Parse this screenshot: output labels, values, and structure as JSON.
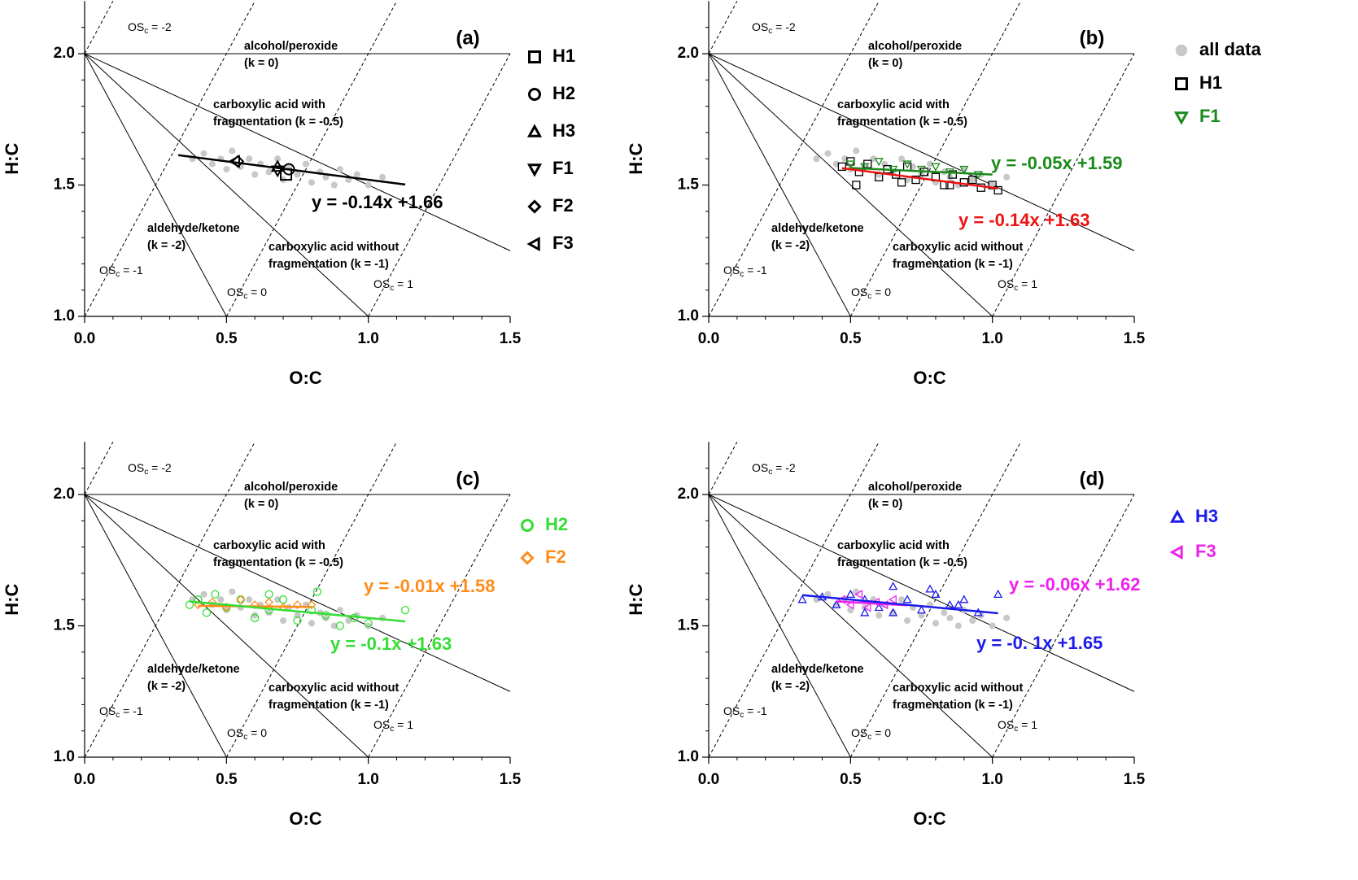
{
  "chart_data": [
    {
      "type": "scatter",
      "panel_label": "(a)",
      "xlabel": "O:C",
      "ylabel": "H:C",
      "xlim": [
        0,
        1.5
      ],
      "ylim": [
        1.0,
        2.2
      ],
      "xticks": [
        {
          "value": 0,
          "label": "0.0"
        },
        0.5,
        {
          "value": 1,
          "label": "1.0"
        },
        1.5
      ],
      "yticks": [
        {
          "value": 1,
          "label": "1.0"
        },
        1.5,
        {
          "value": 2,
          "label": "2.0"
        }
      ],
      "xminorticks": [
        0.1,
        0.2,
        0.3,
        0.4,
        0.6,
        0.7,
        0.8,
        0.9,
        1.1,
        1.2,
        1.3,
        1.4
      ],
      "yminorticks": [
        1.1,
        1.2,
        1.3,
        1.4,
        1.6,
        1.7,
        1.8,
        1.9,
        2.1
      ],
      "slope_origin": [
        0,
        2
      ],
      "slope_lines": [
        {
          "k": 0,
          "labels": [
            "alcohol/peroxide",
            "(k = 0)"
          ]
        },
        {
          "k": -0.5,
          "labels": [
            "carboxylic acid with",
            "fragmentation (k = -0.5)"
          ]
        },
        {
          "k": -1,
          "labels": [
            "carboxylic acid without",
            "fragmentation (k = -1)"
          ]
        },
        {
          "k": -2,
          "labels": [
            "aldehyde/ketone",
            "(k = -2)"
          ]
        }
      ],
      "os_lines": [
        {
          "value": -2,
          "main": "OS",
          "sub": "c",
          "rest": " = -2"
        },
        {
          "value": -1,
          "main": "OS",
          "sub": "c",
          "rest": " = -1"
        },
        {
          "value": 0,
          "main": "OS",
          "sub": "c",
          "rest": " = 0"
        },
        {
          "value": 1,
          "main": "OS",
          "sub": "c",
          "rest": " = 1"
        }
      ],
      "series": [
        {
          "marker": "dot",
          "color": "#c8c8c8",
          "x": [
            0.38,
            0.42,
            0.45,
            0.48,
            0.5,
            0.52,
            0.55,
            0.58,
            0.6,
            0.62,
            0.65,
            0.68,
            0.7,
            0.72,
            0.75,
            0.78,
            0.8,
            0.83,
            0.85,
            0.88,
            0.9,
            0.93,
            0.96,
            1.0,
            1.05
          ],
          "y": [
            1.6,
            1.62,
            1.58,
            1.6,
            1.56,
            1.63,
            1.57,
            1.6,
            1.54,
            1.58,
            1.55,
            1.6,
            1.52,
            1.57,
            1.54,
            1.58,
            1.51,
            1.55,
            1.53,
            1.5,
            1.56,
            1.52,
            1.54,
            1.5,
            1.53
          ]
        },
        {
          "name": "H1",
          "marker": "square",
          "color": "#000000",
          "x": [
            0.71
          ],
          "y": [
            1.54
          ]
        },
        {
          "name": "H2",
          "marker": "circle",
          "color": "#000000",
          "x": [
            0.72
          ],
          "y": [
            1.56
          ]
        },
        {
          "name": "H3",
          "marker": "tri-up",
          "color": "#000000",
          "x": [
            0.68
          ],
          "y": [
            1.57
          ]
        },
        {
          "name": "F1",
          "marker": "tri-down",
          "color": "#000000",
          "x": [
            0.68
          ],
          "y": [
            1.555
          ]
        },
        {
          "name": "F2",
          "marker": "diamond",
          "color": "#000000",
          "x": [
            0.54
          ],
          "y": [
            1.59
          ]
        },
        {
          "name": "F3",
          "marker": "tri-left",
          "color": "#000000",
          "x": [
            0.53
          ],
          "y": [
            1.59
          ]
        }
      ],
      "fits": [
        {
          "label": "y = -0.14x +1.66",
          "color": "#000000",
          "slope": -0.14,
          "intercept": 1.66,
          "xrange": [
            0.33,
            1.13
          ]
        }
      ]
    },
    {
      "type": "scatter",
      "panel_label": "(b)",
      "xlabel": "O:C",
      "ylabel": "H:C",
      "xlim": [
        0,
        1.5
      ],
      "ylim": [
        1.0,
        2.2
      ],
      "xticks": [
        {
          "value": 0,
          "label": "0.0"
        },
        0.5,
        {
          "value": 1,
          "label": "1.0"
        },
        1.5
      ],
      "yticks": [
        {
          "value": 1,
          "label": "1.0"
        },
        1.5,
        {
          "value": 2,
          "label": "2.0"
        }
      ],
      "xminorticks": [
        0.1,
        0.2,
        0.3,
        0.4,
        0.6,
        0.7,
        0.8,
        0.9,
        1.1,
        1.2,
        1.3,
        1.4
      ],
      "yminorticks": [
        1.1,
        1.2,
        1.3,
        1.4,
        1.6,
        1.7,
        1.8,
        1.9,
        2.1
      ],
      "slope_origin": [
        0,
        2
      ],
      "slope_lines": [
        {
          "k": 0,
          "labels": [
            "alcohol/peroxide",
            "(k = 0)"
          ]
        },
        {
          "k": -0.5,
          "labels": [
            "carboxylic acid with",
            "fragmentation (k = -0.5)"
          ]
        },
        {
          "k": -1,
          "labels": [
            "carboxylic acid without",
            "fragmentation (k = -1)"
          ]
        },
        {
          "k": -2,
          "labels": [
            "aldehyde/ketone",
            "(k = -2)"
          ]
        }
      ],
      "os_lines": [
        {
          "value": -2,
          "main": "OS",
          "sub": "c",
          "rest": " = -2"
        },
        {
          "value": -1,
          "main": "OS",
          "sub": "c",
          "rest": " = -1"
        },
        {
          "value": 0,
          "main": "OS",
          "sub": "c",
          "rest": " = 0"
        },
        {
          "value": 1,
          "main": "OS",
          "sub": "c",
          "rest": " = 1"
        }
      ],
      "series": [
        {
          "name": "all data",
          "marker": "dot",
          "color": "#c8c8c8",
          "x": [
            0.38,
            0.42,
            0.45,
            0.48,
            0.5,
            0.52,
            0.55,
            0.58,
            0.6,
            0.62,
            0.65,
            0.68,
            0.7,
            0.72,
            0.75,
            0.78,
            0.8,
            0.83,
            0.85,
            0.88,
            0.9,
            0.93,
            0.96,
            1.0,
            1.05
          ],
          "y": [
            1.6,
            1.62,
            1.58,
            1.6,
            1.56,
            1.63,
            1.57,
            1.6,
            1.54,
            1.58,
            1.55,
            1.6,
            1.52,
            1.57,
            1.54,
            1.58,
            1.51,
            1.55,
            1.53,
            1.5,
            1.56,
            1.52,
            1.54,
            1.5,
            1.53
          ]
        },
        {
          "name": "H1",
          "marker": "square",
          "color": "#000000",
          "x": [
            0.47,
            0.5,
            0.53,
            0.56,
            0.6,
            0.63,
            0.66,
            0.7,
            0.73,
            0.76,
            0.8,
            0.83,
            0.86,
            0.9,
            0.93,
            0.96,
            1.0,
            1.02,
            0.52,
            0.68,
            0.85
          ],
          "y": [
            1.57,
            1.59,
            1.55,
            1.58,
            1.53,
            1.56,
            1.54,
            1.57,
            1.52,
            1.55,
            1.53,
            1.5,
            1.54,
            1.51,
            1.52,
            1.49,
            1.5,
            1.48,
            1.5,
            1.51,
            1.5
          ]
        },
        {
          "name": "F1",
          "marker": "tri-down",
          "color": "#1a8a1a",
          "x": [
            0.5,
            0.55,
            0.6,
            0.65,
            0.7,
            0.75,
            0.8,
            0.85,
            0.9,
            0.95
          ],
          "y": [
            1.58,
            1.57,
            1.59,
            1.56,
            1.58,
            1.56,
            1.57,
            1.55,
            1.56,
            1.54
          ]
        }
      ],
      "fits": [
        {
          "label": "y = -0.05x +1.59",
          "color": "#1a8a1a",
          "slope": -0.05,
          "intercept": 1.59,
          "xrange": [
            0.5,
            1.0
          ]
        },
        {
          "label": "y = -0.14x +1.63",
          "color": "#ee1111",
          "slope": -0.14,
          "intercept": 1.63,
          "xrange": [
            0.47,
            1.02
          ]
        }
      ]
    },
    {
      "type": "scatter",
      "panel_label": "(c)",
      "xlabel": "O:C",
      "ylabel": "H:C",
      "xlim": [
        0,
        1.5
      ],
      "ylim": [
        1.0,
        2.2
      ],
      "xticks": [
        {
          "value": 0,
          "label": "0.0"
        },
        0.5,
        {
          "value": 1,
          "label": "1.0"
        },
        1.5
      ],
      "yticks": [
        {
          "value": 1,
          "label": "1.0"
        },
        1.5,
        {
          "value": 2,
          "label": "2.0"
        }
      ],
      "xminorticks": [
        0.1,
        0.2,
        0.3,
        0.4,
        0.6,
        0.7,
        0.8,
        0.9,
        1.1,
        1.2,
        1.3,
        1.4
      ],
      "yminorticks": [
        1.1,
        1.2,
        1.3,
        1.4,
        1.6,
        1.7,
        1.8,
        1.9,
        2.1
      ],
      "slope_origin": [
        0,
        2
      ],
      "slope_lines": [
        {
          "k": 0,
          "labels": [
            "alcohol/peroxide",
            "(k = 0)"
          ]
        },
        {
          "k": -0.5,
          "labels": [
            "carboxylic acid with",
            "fragmentation (k = -0.5)"
          ]
        },
        {
          "k": -1,
          "labels": [
            "carboxylic acid without",
            "fragmentation (k = -1)"
          ]
        },
        {
          "k": -2,
          "labels": [
            "aldehyde/ketone",
            "(k = -2)"
          ]
        }
      ],
      "os_lines": [
        {
          "value": -2,
          "main": "OS",
          "sub": "c",
          "rest": " = -2"
        },
        {
          "value": -1,
          "main": "OS",
          "sub": "c",
          "rest": " = -1"
        },
        {
          "value": 0,
          "main": "OS",
          "sub": "c",
          "rest": " = 0"
        },
        {
          "value": 1,
          "main": "OS",
          "sub": "c",
          "rest": " = 1"
        }
      ],
      "series": [
        {
          "marker": "dot",
          "color": "#c8c8c8",
          "x": [
            0.38,
            0.42,
            0.45,
            0.48,
            0.5,
            0.52,
            0.55,
            0.58,
            0.6,
            0.62,
            0.65,
            0.68,
            0.7,
            0.72,
            0.75,
            0.78,
            0.8,
            0.83,
            0.85,
            0.88,
            0.9,
            0.93,
            0.96,
            1.0,
            1.05
          ],
          "y": [
            1.6,
            1.62,
            1.58,
            1.6,
            1.56,
            1.63,
            1.57,
            1.6,
            1.54,
            1.58,
            1.55,
            1.6,
            1.52,
            1.57,
            1.54,
            1.58,
            1.51,
            1.55,
            1.53,
            1.5,
            1.56,
            1.52,
            1.54,
            1.5,
            1.53
          ]
        },
        {
          "name": "H2",
          "marker": "circle",
          "color": "#33dd33",
          "x": [
            0.37,
            0.4,
            0.43,
            0.46,
            0.5,
            0.55,
            0.6,
            0.65,
            0.7,
            0.75,
            0.8,
            0.85,
            0.9,
            0.95,
            1.0,
            1.13,
            0.82,
            0.65
          ],
          "y": [
            1.58,
            1.6,
            1.55,
            1.62,
            1.57,
            1.6,
            1.53,
            1.56,
            1.6,
            1.52,
            1.56,
            1.54,
            1.5,
            1.53,
            1.51,
            1.56,
            1.63,
            1.62
          ]
        },
        {
          "name": "F2",
          "marker": "diamond",
          "color": "#ff8c1a",
          "x": [
            0.4,
            0.45,
            0.5,
            0.55,
            0.6,
            0.65,
            0.7,
            0.75,
            0.8
          ],
          "y": [
            1.58,
            1.59,
            1.57,
            1.6,
            1.58,
            1.59,
            1.57,
            1.58,
            1.58
          ]
        }
      ],
      "fits": [
        {
          "label": "y = -0.01x +1.58",
          "color": "#ff8c1a",
          "slope": -0.01,
          "intercept": 1.58,
          "xrange": [
            0.4,
            0.8
          ]
        },
        {
          "label": "y = -0.1x +1.63",
          "color": "#33dd33",
          "slope": -0.1,
          "intercept": 1.63,
          "xrange": [
            0.37,
            1.13
          ]
        }
      ]
    },
    {
      "type": "scatter",
      "panel_label": "(d)",
      "xlabel": "O:C",
      "ylabel": "H:C",
      "xlim": [
        0,
        1.5
      ],
      "ylim": [
        1.0,
        2.2
      ],
      "xticks": [
        {
          "value": 0,
          "label": "0.0"
        },
        0.5,
        {
          "value": 1,
          "label": "1.0"
        },
        1.5
      ],
      "yticks": [
        {
          "value": 1,
          "label": "1.0"
        },
        1.5,
        {
          "value": 2,
          "label": "2.0"
        }
      ],
      "xminorticks": [
        0.1,
        0.2,
        0.3,
        0.4,
        0.6,
        0.7,
        0.8,
        0.9,
        1.1,
        1.2,
        1.3,
        1.4
      ],
      "yminorticks": [
        1.1,
        1.2,
        1.3,
        1.4,
        1.6,
        1.7,
        1.8,
        1.9,
        2.1
      ],
      "slope_origin": [
        0,
        2
      ],
      "slope_lines": [
        {
          "k": 0,
          "labels": [
            "alcohol/peroxide",
            "(k = 0)"
          ]
        },
        {
          "k": -0.5,
          "labels": [
            "carboxylic acid with",
            "fragmentation (k = -0.5)"
          ]
        },
        {
          "k": -1,
          "labels": [
            "carboxylic acid without",
            "fragmentation (k = -1)"
          ]
        },
        {
          "k": -2,
          "labels": [
            "aldehyde/ketone",
            "(k = -2)"
          ]
        }
      ],
      "os_lines": [
        {
          "value": -2,
          "main": "OS",
          "sub": "c",
          "rest": " = -2"
        },
        {
          "value": -1,
          "main": "OS",
          "sub": "c",
          "rest": " = -1"
        },
        {
          "value": 0,
          "main": "OS",
          "sub": "c",
          "rest": " = 0"
        },
        {
          "value": 1,
          "main": "OS",
          "sub": "c",
          "rest": " = 1"
        }
      ],
      "series": [
        {
          "marker": "dot",
          "color": "#c8c8c8",
          "x": [
            0.38,
            0.42,
            0.45,
            0.48,
            0.5,
            0.52,
            0.55,
            0.58,
            0.6,
            0.62,
            0.65,
            0.68,
            0.7,
            0.72,
            0.75,
            0.78,
            0.8,
            0.83,
            0.85,
            0.88,
            0.9,
            0.93,
            0.96,
            1.0,
            1.05
          ],
          "y": [
            1.6,
            1.62,
            1.58,
            1.6,
            1.56,
            1.63,
            1.57,
            1.6,
            1.54,
            1.58,
            1.55,
            1.6,
            1.52,
            1.57,
            1.54,
            1.58,
            1.51,
            1.55,
            1.53,
            1.5,
            1.56,
            1.52,
            1.54,
            1.5,
            1.53
          ]
        },
        {
          "name": "H3",
          "marker": "tri-up",
          "color": "#1a1aee",
          "x": [
            0.33,
            0.4,
            0.45,
            0.5,
            0.55,
            0.6,
            0.65,
            0.7,
            0.75,
            0.8,
            0.85,
            0.9,
            0.95,
            1.02,
            0.65,
            0.78,
            0.88,
            0.55
          ],
          "y": [
            1.6,
            1.61,
            1.58,
            1.62,
            1.6,
            1.57,
            1.65,
            1.6,
            1.56,
            1.62,
            1.58,
            1.6,
            1.55,
            1.62,
            1.55,
            1.64,
            1.58,
            1.55
          ]
        },
        {
          "name": "F3",
          "marker": "tri-left",
          "color": "#ee22ee",
          "x": [
            0.47,
            0.5,
            0.53,
            0.56,
            0.59,
            0.62,
            0.65
          ],
          "y": [
            1.6,
            1.58,
            1.62,
            1.57,
            1.59,
            1.58,
            1.6
          ]
        }
      ],
      "fits": [
        {
          "label": "y = -0.06x +1.62",
          "color": "#ee22ee",
          "slope": -0.06,
          "intercept": 1.62,
          "xrange": [
            0.45,
            0.7
          ]
        },
        {
          "label": "y = -0. 1x +1.65",
          "color": "#1a1aee",
          "slope": -0.1,
          "intercept": 1.65,
          "xrange": [
            0.33,
            1.02
          ]
        }
      ]
    }
  ]
}
